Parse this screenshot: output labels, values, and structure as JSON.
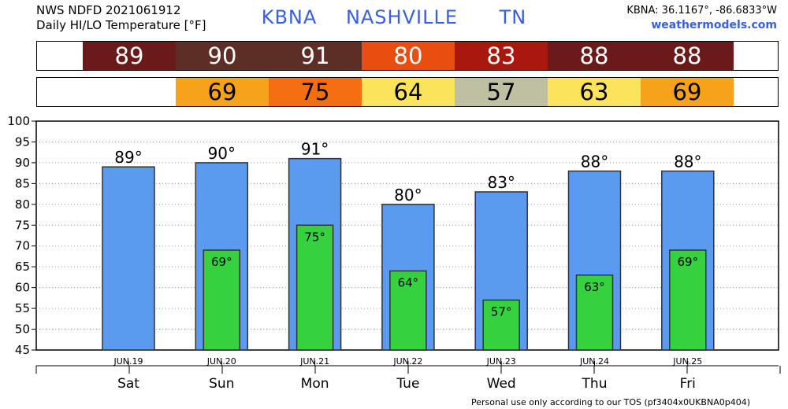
{
  "header": {
    "line1": "NWS NDFD 2021061912",
    "line2": "Daily HI/LO Temperature [°F]",
    "station": "KBNA",
    "city": "NASHVILLE",
    "state": "TN",
    "coords": "KBNA: 36.1167°, -86.6833°W",
    "site": "weathermodels.com"
  },
  "footer": "Personal use only according to our TOS (pf3404x0UKBNA0p404)",
  "hi_strip": [
    {
      "value": "89",
      "color": "#6b1a1a",
      "text_color": "#ffffff"
    },
    {
      "value": "90",
      "color": "#5c2e26",
      "text_color": "#ffffff"
    },
    {
      "value": "91",
      "color": "#5c2e26",
      "text_color": "#ffffff"
    },
    {
      "value": "80",
      "color": "#e84e0f",
      "text_color": "#ffffff"
    },
    {
      "value": "83",
      "color": "#a8180e",
      "text_color": "#ffffff"
    },
    {
      "value": "88",
      "color": "#6b1a1a",
      "text_color": "#ffffff"
    },
    {
      "value": "88",
      "color": "#6b1a1a",
      "text_color": "#ffffff"
    }
  ],
  "lo_strip": [
    {
      "value": "",
      "color": "#ffffff",
      "text_color": "#000000"
    },
    {
      "value": "69",
      "color": "#f7a21b",
      "text_color": "#000000"
    },
    {
      "value": "75",
      "color": "#f56f12",
      "text_color": "#000000"
    },
    {
      "value": "64",
      "color": "#fbe35b",
      "text_color": "#000000"
    },
    {
      "value": "57",
      "color": "#bfbfa2",
      "text_color": "#000000"
    },
    {
      "value": "63",
      "color": "#fbe35b",
      "text_color": "#000000"
    },
    {
      "value": "69",
      "color": "#f7a21b",
      "text_color": "#000000"
    }
  ],
  "chart_data": {
    "type": "bar",
    "categories": [
      "Sat",
      "Sun",
      "Mon",
      "Tue",
      "Wed",
      "Thu",
      "Fri"
    ],
    "dates": [
      "JUN.19",
      "JUN.20",
      "JUN.21",
      "JUN.22",
      "JUN.23",
      "JUN.24",
      "JUN.25"
    ],
    "series": [
      {
        "values": [
          89,
          90,
          91,
          80,
          83,
          88,
          88
        ],
        "labels": [
          "89°",
          "90°",
          "91°",
          "80°",
          "83°",
          "88°",
          "88°"
        ],
        "color": "#5a9bf0"
      },
      {
        "values": [
          null,
          69,
          75,
          64,
          57,
          63,
          69
        ],
        "labels": [
          "",
          "69°",
          "75°",
          "64°",
          "57°",
          "63°",
          "69°"
        ],
        "color": "#35d13f"
      }
    ],
    "yticks": [
      "100",
      "95",
      "90",
      "85",
      "80",
      "75",
      "70",
      "65",
      "60",
      "55",
      "50",
      "45"
    ],
    "ylim": [
      45,
      100
    ],
    "grid": true
  }
}
